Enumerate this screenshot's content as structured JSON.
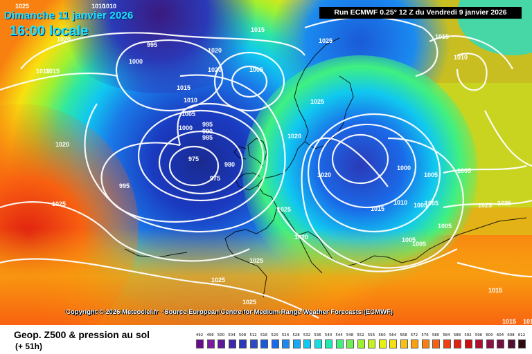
{
  "header": {
    "date": "Dimanche 11 janvier 2026",
    "time": "16:00 locale",
    "run": "Run ECMWF 0.25° 12 Z du Vendredi 9 janvier 2026"
  },
  "copyright": "Copyright © 2026 Meteociel.fr - Source European Centre for Medium-Range Weather Forecasts (ECMWF)",
  "footer": {
    "product": "Geop. Z500 & pression au sol",
    "lead": "(+ 51h)"
  },
  "scale": {
    "values": [
      "492",
      "496",
      "500",
      "504",
      "508",
      "512",
      "516",
      "520",
      "524",
      "528",
      "532",
      "536",
      "540",
      "544",
      "548",
      "552",
      "556",
      "560",
      "564",
      "568",
      "572",
      "576",
      "580",
      "584",
      "588",
      "592",
      "596",
      "600",
      "604",
      "608",
      "612"
    ],
    "colors": [
      "#6a0a8c",
      "#7a1aa0",
      "#5a1a9a",
      "#3a2aa8",
      "#2a3ab8",
      "#2a4ac8",
      "#1a5ad8",
      "#1a6ae8",
      "#1a8af0",
      "#1aa8f0",
      "#10c8f0",
      "#10e0e0",
      "#20e8b0",
      "#40f080",
      "#70f050",
      "#a0f030",
      "#c8f020",
      "#e8f010",
      "#f8e010",
      "#f8c010",
      "#f8a010",
      "#f88010",
      "#f86010",
      "#f04010",
      "#e02010",
      "#c81010",
      "#b01030",
      "#901040",
      "#701040",
      "#501030",
      "#300810"
    ]
  },
  "isobars": [
    "1025",
    "1010",
    "1015",
    "1020",
    "995",
    "1000",
    "1015",
    "1010",
    "1015",
    "1020",
    "1020",
    "1005",
    "1010",
    "1005",
    "1000",
    "995",
    "990",
    "985",
    "975",
    "980",
    "975",
    "995",
    "1025",
    "1025",
    "1015",
    "1020",
    "1015",
    "1020",
    "1010",
    "1020",
    "1000",
    "1005",
    "1005",
    "1025",
    "1015",
    "1010",
    "1005",
    "1005",
    "1025",
    "1025",
    "1025",
    "1020",
    "1025",
    "1005",
    "1005",
    "1005",
    "1015",
    "1025",
    "1025",
    "1015",
    "1015"
  ]
}
